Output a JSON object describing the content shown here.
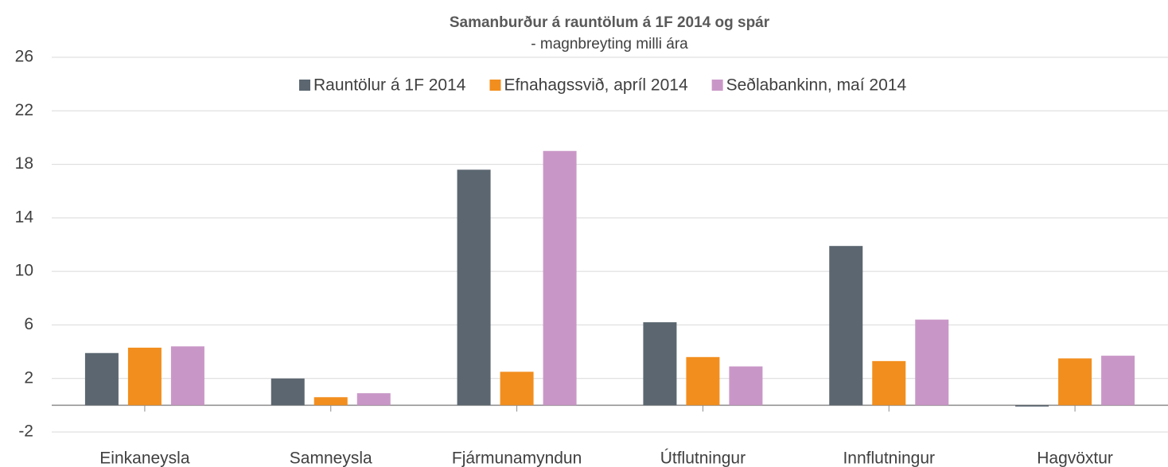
{
  "chart_data": {
    "type": "bar",
    "title": "Samanburður á rauntölum á 1F 2014 og spár",
    "subtitle": "- magnbreyting milli ára",
    "categories": [
      "Einkaneysla",
      "Samneysla",
      "Fjármunamyndun",
      "Útflutningur",
      "Innflutningur",
      "Hagvöxtur"
    ],
    "series": [
      {
        "name": "Rauntölur á 1F 2014",
        "color": "#5b6670",
        "values": [
          3.9,
          2.0,
          17.6,
          6.2,
          11.9,
          -0.1
        ]
      },
      {
        "name": "Efnahagssvið, apríl 2014",
        "color": "#f28e1e",
        "values": [
          4.3,
          0.6,
          2.5,
          3.6,
          3.3,
          3.5
        ]
      },
      {
        "name": "Seðlabankinn, maí 2014",
        "color": "#c997c7",
        "values": [
          4.4,
          0.9,
          19.0,
          2.9,
          6.4,
          3.7
        ]
      }
    ],
    "ylim": [
      -2,
      26
    ],
    "yticks": [
      -2,
      2,
      6,
      10,
      14,
      18,
      22,
      26
    ],
    "grid": true,
    "legend": "top"
  }
}
